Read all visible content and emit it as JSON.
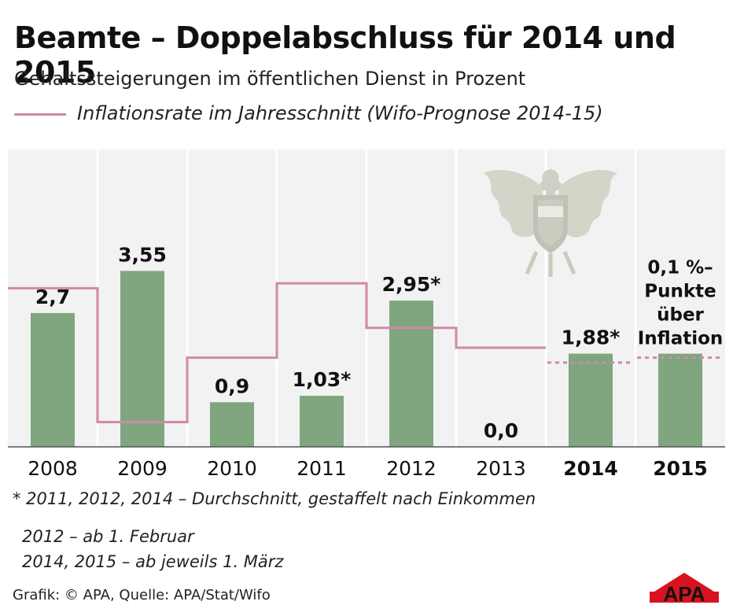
{
  "header": {
    "title": "Beamte – Doppelabschluss für 2014 und 2015",
    "subtitle": "Gehaltssteigerungen im öffentlichen Dienst in Prozent",
    "legend_label": "Inflationsrate im Jahresschnitt (Wifo-Prognose 2014-15)"
  },
  "chart_data": {
    "type": "bar",
    "categories": [
      "2008",
      "2009",
      "2010",
      "2011",
      "2012",
      "2013",
      "2014",
      "2015"
    ],
    "bold_categories": [
      "2014",
      "2015"
    ],
    "values": [
      2.7,
      3.55,
      0.9,
      1.03,
      2.95,
      0.0,
      1.88,
      1.88
    ],
    "data_labels": [
      "2,7",
      "3,55",
      "0,9",
      "1,03*",
      "2,95*",
      "0,0",
      "1,88*",
      ""
    ],
    "annotation_2015": [
      "0,1 %–",
      "Punkte",
      "über",
      "Inflation"
    ],
    "inflation_line": {
      "values": [
        3.2,
        0.5,
        1.8,
        3.3,
        2.4,
        2.0,
        1.7,
        1.8
      ],
      "projected_from": "2014",
      "color": "#d08aa8"
    },
    "bar_color": "#7fa67f",
    "ylim": [
      0,
      6
    ],
    "grid": "vertical"
  },
  "footer": {
    "footnote": "* 2011, 2012, 2014 – Durchschnitt, gestaffelt nach Einkommen",
    "note1": "2012 – ab 1. Februar",
    "note2": "2014, 2015 – ab jeweils 1. März",
    "credit": "Grafik: © APA, Quelle: APA/Stat/Wifo",
    "logo_text": "APA"
  }
}
